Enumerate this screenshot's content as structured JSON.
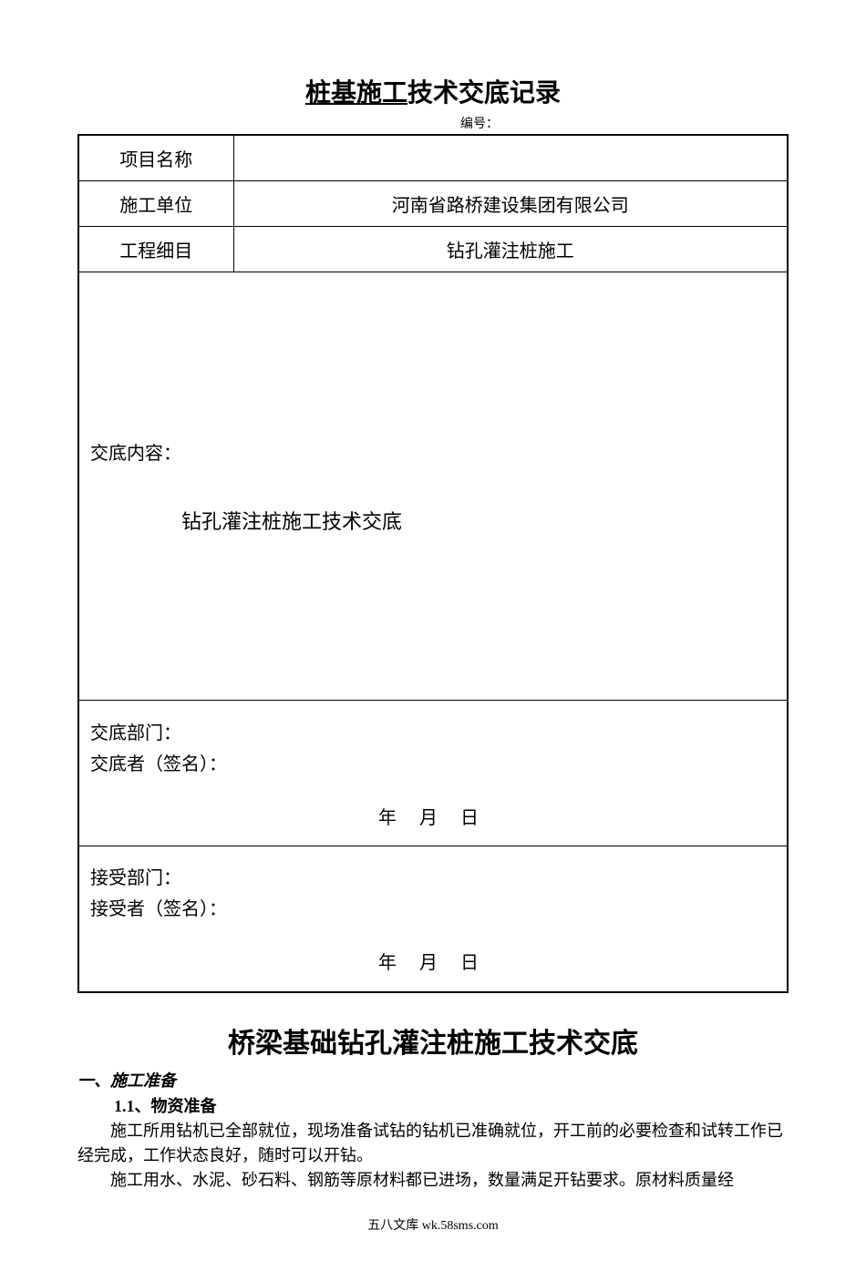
{
  "title_underlined": "桩基施工",
  "title_rest": "技术交底记录",
  "serial_label": "编号：",
  "table": {
    "row1_label": "项目名称",
    "row1_value": "",
    "row2_label": "施工单位",
    "row2_value": "河南省路桥建设集团有限公司",
    "row3_label": "工程细目",
    "row3_value": "钻孔灌注桩施工"
  },
  "content": {
    "label": "交底内容：",
    "title": "钻孔灌注桩施工技术交底"
  },
  "deliver": {
    "dept_label": "交底部门：",
    "signer_label": "交底者（签名）：",
    "date": "年  月  日"
  },
  "receive": {
    "dept_label": "接受部门：",
    "signer_label": "接受者（签名）：",
    "date": "年  月  日"
  },
  "section_title": "桥梁基础钻孔灌注桩施工技术交底",
  "heading1": "一、施工准备",
  "subheading1": "1.1、物资准备",
  "para1": "施工所用钻机已全部就位，现场准备试钻的钻机已准确就位，开工前的必要检查和试转工作已经完成，工作状态良好，随时可以开钻。",
  "para2": "施工用水、水泥、砂石料、钢筋等原材料都已进场，数量满足开钻要求。原材料质量经",
  "footer": "五八文库 wk.58sms.com"
}
